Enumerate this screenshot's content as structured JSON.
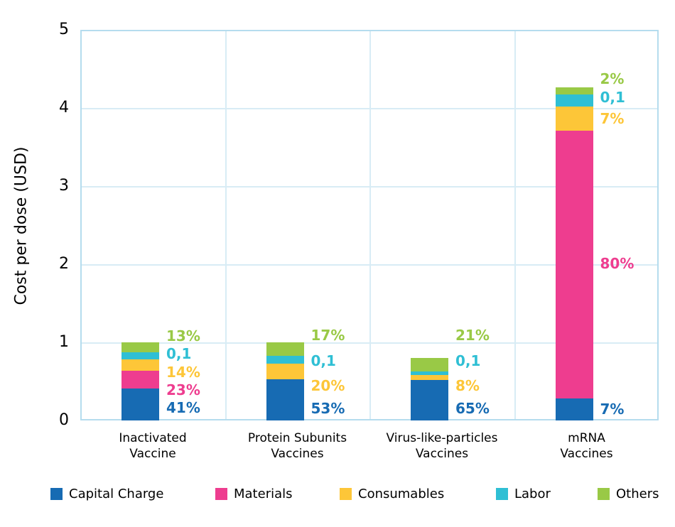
{
  "ylabel": "Cost per dose (USD)",
  "colors": {
    "capital_charge": "#176BB3",
    "materials": "#EE3D8F",
    "consumables": "#FDC638",
    "labor": "#2FBFD4",
    "others": "#99C946",
    "grid": "#D8ECF5",
    "border": "#B5DCEE",
    "text": "#000000"
  },
  "chart_data": {
    "type": "bar",
    "stacked": true,
    "title": "",
    "xlabel": "",
    "ylabel": "Cost per dose (USD)",
    "ylim": [
      0,
      5
    ],
    "yticks": [
      "0",
      "1",
      "2",
      "3",
      "4",
      "5"
    ],
    "grid": true,
    "legend_position": "bottom",
    "categories": [
      "Inactivated\nVaccine",
      "Protein Subunits\nVaccines",
      "Virus-like-particles\nVaccines",
      "mRNA\nVaccines"
    ],
    "category_totals_usd": [
      1.0,
      1.0,
      0.8,
      4.26
    ],
    "series": [
      {
        "name": "Capital Charge",
        "key": "capital_charge",
        "values": [
          0.41,
          0.53,
          0.52,
          0.28
        ]
      },
      {
        "name": "Materials",
        "key": "materials",
        "values": [
          0.23,
          0.0,
          0.0,
          3.43
        ]
      },
      {
        "name": "Consumables",
        "key": "consumables",
        "values": [
          0.14,
          0.2,
          0.06,
          0.31
        ]
      },
      {
        "name": "Labor",
        "key": "labor",
        "values": [
          0.09,
          0.1,
          0.05,
          0.15
        ]
      },
      {
        "name": "Others",
        "key": "others",
        "values": [
          0.13,
          0.17,
          0.17,
          0.09
        ]
      }
    ],
    "annotations": [
      [
        {
          "text": "41%",
          "series": "capital_charge",
          "y": 0.16
        },
        {
          "text": "23%",
          "series": "materials",
          "y": 0.39
        },
        {
          "text": "14%",
          "series": "consumables",
          "y": 0.62
        },
        {
          "text": "0,1",
          "series": "labor",
          "y": 0.855
        },
        {
          "text": "13%",
          "series": "others",
          "y": 1.085
        }
      ],
      [
        {
          "text": "53%",
          "series": "capital_charge",
          "y": 0.155
        },
        {
          "text": "20%",
          "series": "consumables",
          "y": 0.445
        },
        {
          "text": "0,1",
          "series": "labor",
          "y": 0.765
        },
        {
          "text": "17%",
          "series": "others",
          "y": 1.09
        }
      ],
      [
        {
          "text": "65%",
          "series": "capital_charge",
          "y": 0.155
        },
        {
          "text": "8%",
          "series": "consumables",
          "y": 0.445
        },
        {
          "text": "0,1",
          "series": "labor",
          "y": 0.765
        },
        {
          "text": "21%",
          "series": "others",
          "y": 1.09
        }
      ],
      [
        {
          "text": "7%",
          "series": "capital_charge",
          "y": 0.145
        },
        {
          "text": "80%",
          "series": "materials",
          "y": 2.01
        },
        {
          "text": "7%",
          "series": "consumables",
          "y": 3.86
        },
        {
          "text": "0,1",
          "series": "labor",
          "y": 4.14
        },
        {
          "text": "2%",
          "series": "others",
          "y": 4.37
        }
      ]
    ]
  }
}
